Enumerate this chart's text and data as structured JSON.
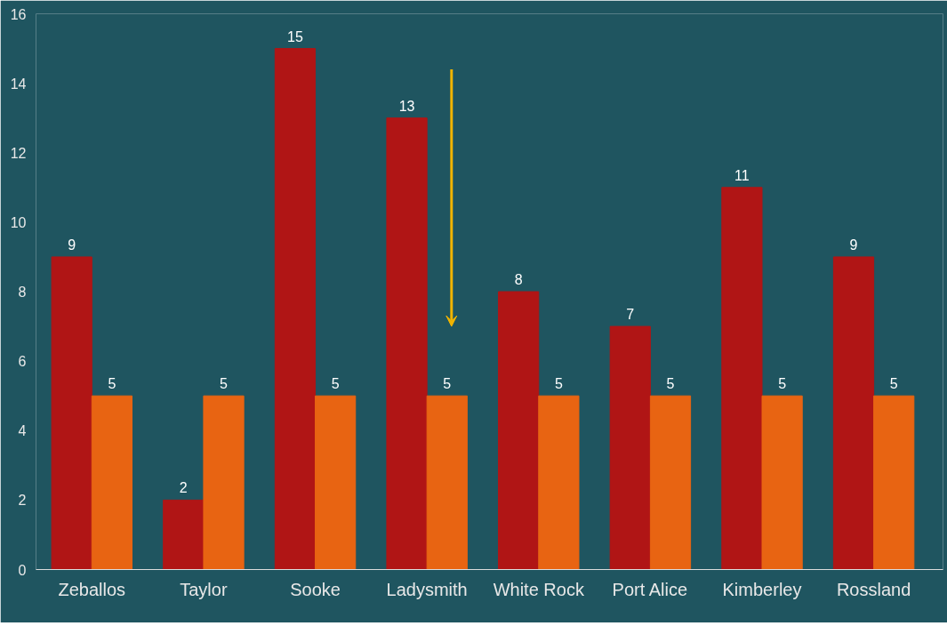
{
  "chart_data": {
    "type": "bar",
    "categories": [
      "Zeballos",
      "Taylor",
      "Sooke",
      "Ladysmith",
      "White Rock",
      "Port Alice",
      "Kimberley",
      "Rossland"
    ],
    "series": [
      {
        "color": "#b01515",
        "values": [
          9,
          2,
          15,
          13,
          8,
          7,
          11,
          9
        ]
      },
      {
        "color": "#e86412",
        "values": [
          5,
          5,
          5,
          5,
          5,
          5,
          5,
          5
        ]
      }
    ],
    "ylim": [
      0,
      16
    ],
    "yticks": [
      0,
      2,
      4,
      6,
      8,
      10,
      12,
      14,
      16
    ],
    "data_labels": true,
    "grid": false
  }
}
